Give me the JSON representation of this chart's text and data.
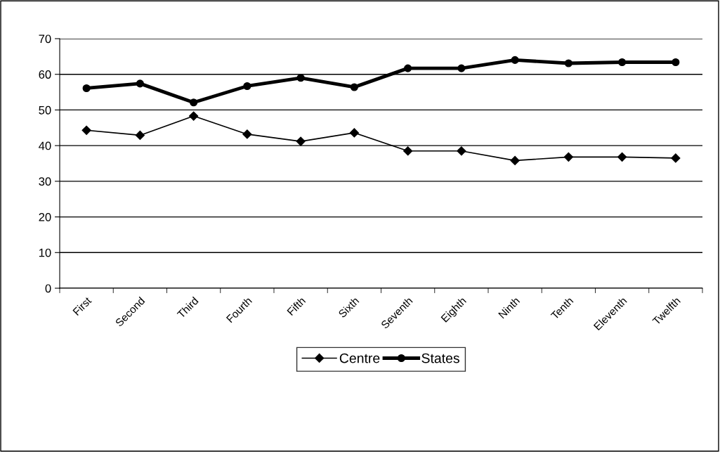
{
  "chart_data": {
    "type": "line",
    "categories": [
      "First",
      "Second",
      "Third",
      "Fourth",
      "Fifth",
      "Sixth",
      "Seventh",
      "Eighth",
      "Ninth",
      "Tenth",
      "Eleventh",
      "Twelfth"
    ],
    "series": [
      {
        "name": "Centre",
        "color": "#000000",
        "marker": "diamond",
        "values": [
          44.3,
          42.9,
          48.3,
          43.2,
          41.2,
          43.6,
          38.5,
          38.5,
          35.8,
          36.8,
          36.8,
          36.5
        ]
      },
      {
        "name": "States",
        "color": "#000000",
        "marker": "circle",
        "values": [
          56.1,
          57.4,
          52.1,
          56.7,
          59.0,
          56.4,
          61.7,
          61.7,
          64.0,
          63.1,
          63.4,
          63.4
        ]
      }
    ],
    "ylim": [
      0,
      70
    ],
    "yticks": [
      0,
      10,
      20,
      30,
      40,
      50,
      60,
      70
    ],
    "grid": "y",
    "legend": "bottom"
  }
}
